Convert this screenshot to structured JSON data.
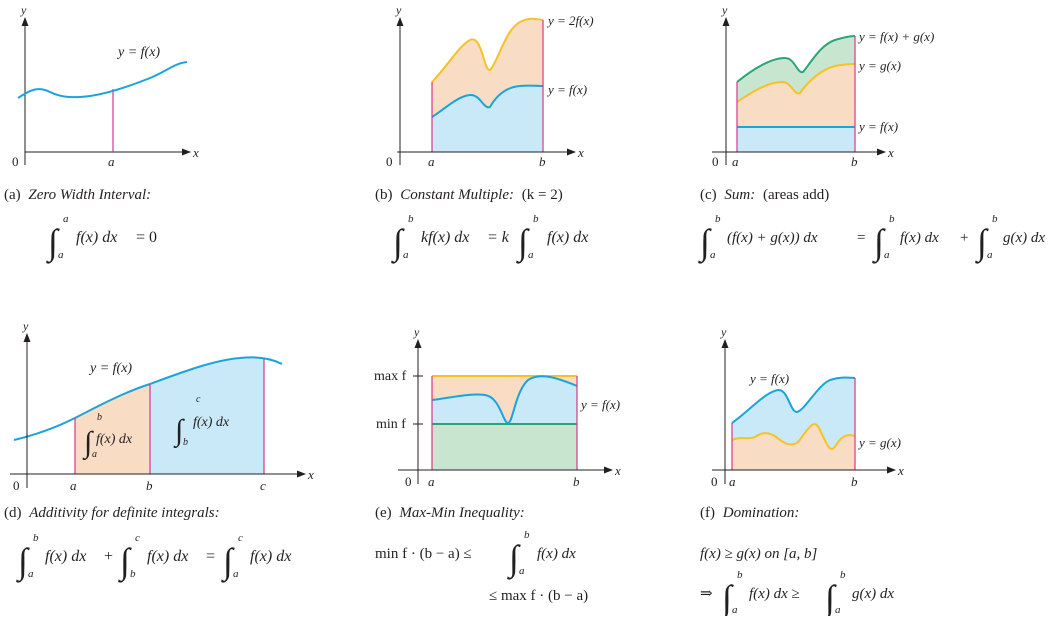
{
  "colors": {
    "curve_blue": "#1aa3dc",
    "fill_blue": "#c9e9f8",
    "curve_yellow": "#f5c324",
    "fill_orange": "#f8dcc4",
    "curve_green": "#2aa47a",
    "fill_green": "#c8e6cf",
    "bound_magenta": "#d9368a",
    "axis": "#231f20"
  },
  "axis_labels": {
    "x": "x",
    "y": "y",
    "origin": "0"
  },
  "bounds": {
    "a": "a",
    "b": "b",
    "c": "c"
  },
  "panels": {
    "a": {
      "caption_letter": "(a)",
      "caption_title": "Zero Width Interval:",
      "curve_label": "y = f(x)",
      "formula": {
        "lower": "a",
        "upper": "a",
        "integrand": "f(x) dx",
        "rhs": "= 0"
      }
    },
    "b": {
      "caption_letter": "(b)",
      "caption_title": "Constant Multiple:",
      "caption_note": "(k = 2)",
      "label_top": "y = 2f(x)",
      "label_bottom": "y = f(x)",
      "formula": {
        "lower": "a",
        "upper": "b",
        "lhs_integrand": "kf(x) dx",
        "middle": "= k",
        "rhs_integrand": "f(x) dx"
      }
    },
    "c": {
      "caption_letter": "(c)",
      "caption_title": "Sum:",
      "caption_note": "(areas add)",
      "label_top": "y = f(x) + g(x)",
      "label_mid": "y = g(x)",
      "label_bottom": "y = f(x)",
      "formula": {
        "lower": "a",
        "upper": "b",
        "lhs_integrand": "(f(x) + g(x)) dx",
        "eq": "=",
        "mid_integrand": "f(x) dx",
        "plus": "+",
        "rhs_integrand": "g(x) dx"
      }
    },
    "d": {
      "caption_letter": "(d)",
      "caption_title": "Additivity for definite integrals:",
      "curve_label": "y = f(x)",
      "region1": {
        "lower": "a",
        "upper": "b",
        "integrand": "f(x) dx"
      },
      "region2": {
        "lower": "b",
        "upper": "c",
        "integrand": "f(x) dx"
      },
      "formula": {
        "plus": "+",
        "eq": "=",
        "integrand": "f(x) dx"
      }
    },
    "e": {
      "caption_letter": "(e)",
      "caption_title": "Max-Min Inequality:",
      "max_label": "max f",
      "min_label": "min f",
      "curve_label": "y = f(x)",
      "formula": {
        "line1_lhs": "min f · (b − a) ≤",
        "integrand": "f(x) dx",
        "line2": "≤ max f · (b − a)"
      }
    },
    "f": {
      "caption_letter": "(f)",
      "caption_title": "Domination:",
      "label_top": "y = f(x)",
      "label_bottom": "y = g(x)",
      "formula": {
        "line1": "f(x) ≥ g(x) on [a, b]",
        "implies": "⇒",
        "lhs_integrand": "f(x) dx ≥",
        "rhs_integrand": "g(x) dx"
      }
    }
  }
}
